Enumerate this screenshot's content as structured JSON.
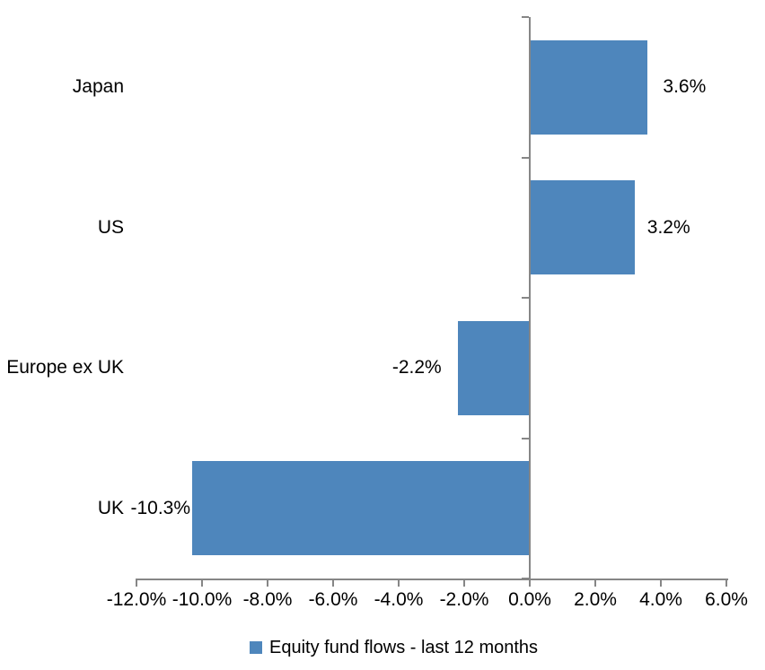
{
  "chart_data": {
    "type": "bar",
    "orientation": "horizontal",
    "title": "",
    "categories": [
      "Japan",
      "US",
      "Europe ex UK",
      "UK"
    ],
    "values": [
      3.6,
      3.2,
      -2.2,
      -10.3
    ],
    "value_labels": [
      "3.6%",
      "3.2%",
      "-2.2%",
      "-10.3%"
    ],
    "series": [
      {
        "name": "Equity fund flows - last 12 months",
        "values": [
          3.6,
          3.2,
          -2.2,
          -10.3
        ]
      }
    ],
    "x_tick_labels": [
      "-12.0%",
      "-10.0%",
      "-8.0%",
      "-6.0%",
      "-4.0%",
      "-2.0%",
      "0.0%",
      "2.0%",
      "4.0%",
      "6.0%"
    ],
    "x_tick_values": [
      -12,
      -10,
      -8,
      -6,
      -4,
      -2,
      0,
      2,
      4,
      6
    ],
    "xlim": [
      -12,
      6
    ],
    "grid": false,
    "legend_position": "bottom",
    "bar_color": "#4E86BC",
    "axis_color": "#868686"
  },
  "legend": {
    "label": "Equity fund flows - last 12 months",
    "marker_color": "#4E86BC"
  }
}
